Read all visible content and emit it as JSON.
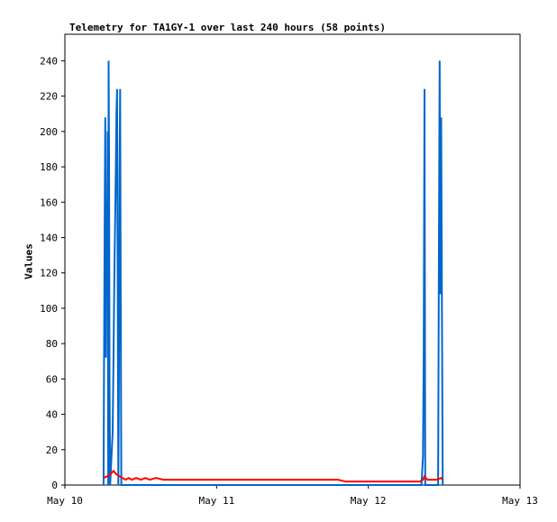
{
  "chart_data": {
    "type": "line",
    "title": "Telemetry for TA1GY-1 over last 240 hours (58 points)",
    "xlabel": "",
    "ylabel": "Values",
    "x_ticks": [
      "May 10",
      "May 11",
      "May 12",
      "May 13"
    ],
    "xlim_days": [
      0,
      3
    ],
    "ylim": [
      0,
      255
    ],
    "y_ticks": [
      0,
      20,
      40,
      60,
      80,
      100,
      120,
      140,
      160,
      180,
      200,
      220,
      240
    ],
    "grid": false,
    "legend": "none",
    "series": [
      {
        "color": "#0066cc",
        "points": [
          [
            0.255,
            0
          ],
          [
            0.258,
            64
          ],
          [
            0.262,
            145
          ],
          [
            0.266,
            208
          ],
          [
            0.27,
            72
          ],
          [
            0.274,
            160
          ],
          [
            0.278,
            120
          ],
          [
            0.282,
            200
          ],
          [
            0.286,
            0
          ],
          [
            0.288,
            240
          ],
          [
            0.291,
            185
          ],
          [
            0.294,
            60
          ],
          [
            0.298,
            0
          ],
          [
            0.315,
            30
          ],
          [
            0.32,
            70
          ],
          [
            0.324,
            100
          ],
          [
            0.328,
            130
          ],
          [
            0.332,
            155
          ],
          [
            0.336,
            182
          ],
          [
            0.34,
            210
          ],
          [
            0.344,
            224
          ],
          [
            0.348,
            112
          ],
          [
            0.352,
            0
          ],
          [
            0.356,
            55
          ],
          [
            0.36,
            168
          ],
          [
            0.364,
            224
          ],
          [
            0.368,
            112
          ],
          [
            0.372,
            0
          ],
          [
            0.38,
            0
          ],
          [
            2.35,
            0
          ],
          [
            2.36,
            16
          ],
          [
            2.365,
            72
          ],
          [
            2.37,
            224
          ],
          [
            2.375,
            0
          ],
          [
            2.46,
            0
          ],
          [
            2.465,
            120
          ],
          [
            2.47,
            240
          ],
          [
            2.475,
            108
          ],
          [
            2.48,
            208
          ],
          [
            2.485,
            104
          ],
          [
            2.49,
            0
          ]
        ]
      },
      {
        "color": "#ff0000",
        "points": [
          [
            0.255,
            4
          ],
          [
            0.28,
            5
          ],
          [
            0.3,
            6
          ],
          [
            0.32,
            8
          ],
          [
            0.34,
            6
          ],
          [
            0.36,
            5
          ],
          [
            0.38,
            4
          ],
          [
            0.4,
            3
          ],
          [
            0.42,
            4
          ],
          [
            0.44,
            3
          ],
          [
            0.47,
            4
          ],
          [
            0.5,
            3
          ],
          [
            0.53,
            4
          ],
          [
            0.56,
            3
          ],
          [
            0.6,
            4
          ],
          [
            0.65,
            3
          ],
          [
            0.8,
            3
          ],
          [
            1.0,
            3
          ],
          [
            1.2,
            3
          ],
          [
            1.5,
            3
          ],
          [
            1.8,
            3
          ],
          [
            1.85,
            2
          ],
          [
            2.0,
            2
          ],
          [
            2.2,
            2
          ],
          [
            2.34,
            2
          ],
          [
            2.36,
            3
          ],
          [
            2.37,
            5
          ],
          [
            2.39,
            3
          ],
          [
            2.42,
            3
          ],
          [
            2.45,
            3
          ],
          [
            2.48,
            4
          ],
          [
            2.49,
            3
          ]
        ]
      }
    ]
  }
}
